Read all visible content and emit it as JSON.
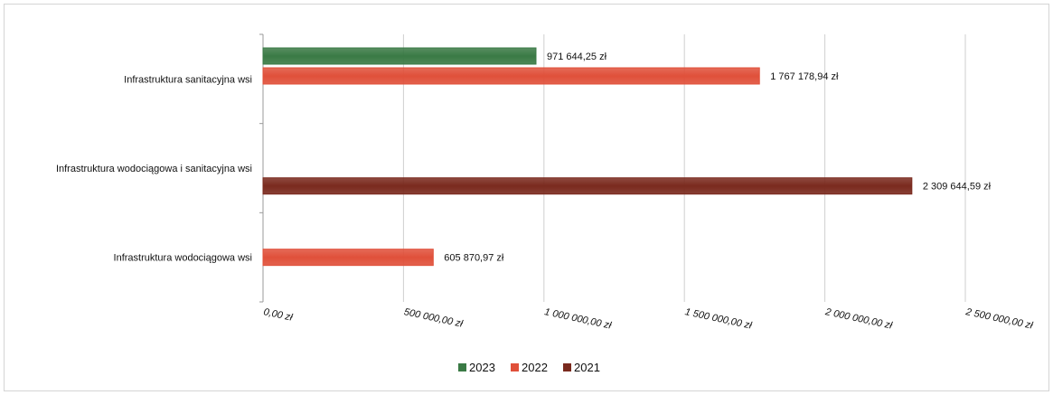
{
  "chart_data": {
    "type": "bar",
    "orientation": "horizontal",
    "categories": [
      "Infrastruktura sanitacyjna wsi",
      "Infrastruktura wodociągowa i sanitacyjna wsi",
      "Infrastruktura wodociągowa wsi"
    ],
    "series": [
      {
        "name": "2023",
        "color": "#3a7a45",
        "values": [
          971644.25,
          null,
          null
        ],
        "labels": [
          "971 644,25 zł",
          "",
          ""
        ]
      },
      {
        "name": "2022",
        "color": "#e0503a",
        "values": [
          1767178.94,
          null,
          605870.97
        ],
        "labels": [
          "1 767 178,94 zł",
          "",
          "605 870,97 zł"
        ]
      },
      {
        "name": "2021",
        "color": "#7a2a1e",
        "values": [
          null,
          2309644.59,
          null
        ],
        "labels": [
          "",
          "2 309 644,59 zł",
          ""
        ]
      }
    ],
    "xlim": [
      0,
      2500000
    ],
    "xticks": [
      0,
      500000,
      1000000,
      1500000,
      2000000,
      2500000
    ],
    "xtick_labels": [
      "0,00 zł",
      "500 000,00 zł",
      "1 000 000,00 zł",
      "1 500 000,00 zł",
      "2 000 000,00 zł",
      "2 500 000,00 zł"
    ],
    "grid": true,
    "legend": "bottom",
    "title": "",
    "xlabel": "",
    "ylabel": ""
  }
}
